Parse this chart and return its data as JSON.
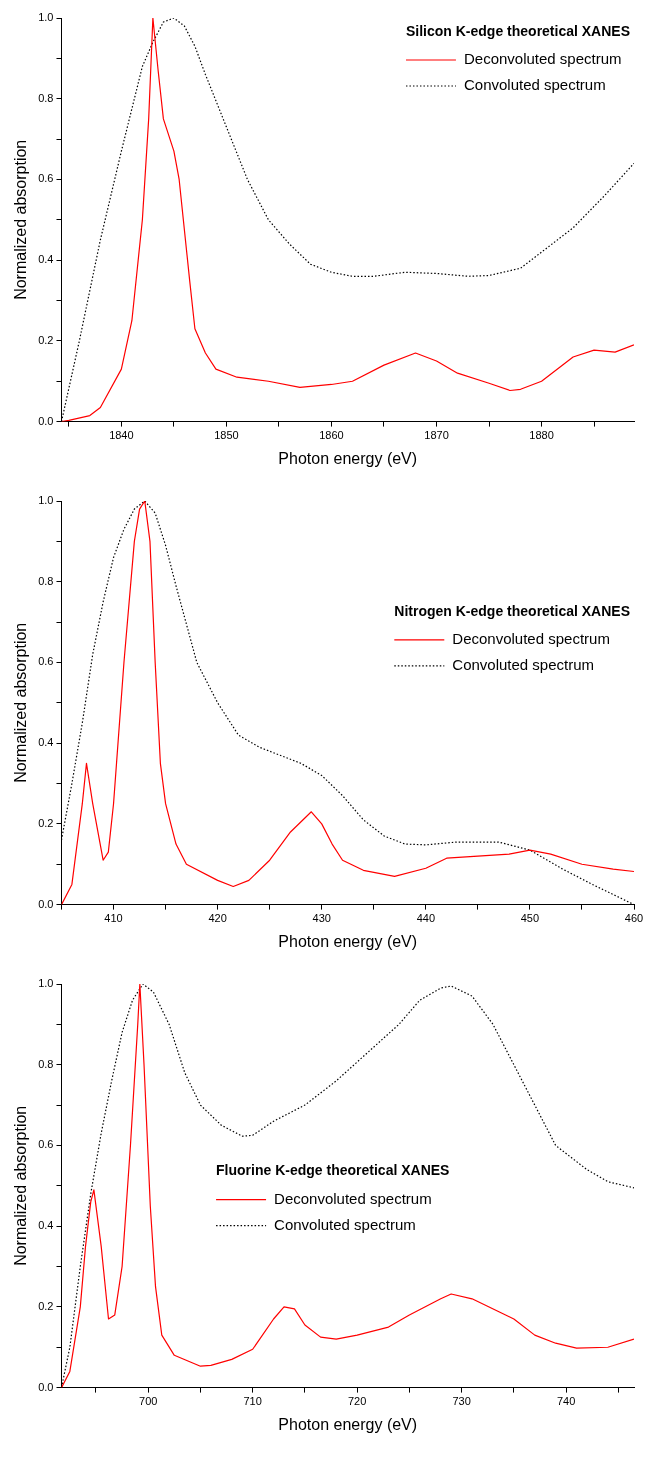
{
  "chart_data": [
    {
      "type": "line",
      "xlabel": "Photon energy (eV)",
      "ylabel": "Normalized absorption",
      "legend_title": "Silicon K-edge theoretical XANES",
      "legend": "top right",
      "xlim": [
        1834.3,
        1888.8
      ],
      "ylim": [
        0,
        1
      ],
      "xticks": [
        {
          "value": 1835,
          "label": null
        },
        1840,
        {
          "value": 1845,
          "label": null
        },
        1850,
        {
          "value": 1855,
          "label": null
        },
        1860,
        {
          "value": 1865,
          "label": null
        },
        1870,
        {
          "value": 1875,
          "label": null
        },
        1880,
        {
          "value": 1885,
          "label": null
        }
      ],
      "yticks": [
        {
          "value": 0,
          "label": "0.0"
        },
        {
          "value": 0.1,
          "label": null
        },
        0.2,
        {
          "value": 0.3,
          "label": null
        },
        0.4,
        {
          "value": 0.5,
          "label": null
        },
        0.6,
        {
          "value": 0.7,
          "label": null
        },
        0.8,
        {
          "value": 0.9,
          "label": null
        },
        {
          "value": 1,
          "label": "1.0"
        }
      ],
      "series": [
        {
          "name": "Deconvoluted spectrum",
          "color": "#ff0000",
          "line_style": "solid",
          "x": [
            1834.3,
            1835,
            1837,
            1838,
            1840,
            1841,
            1842,
            1842.6,
            1843,
            1843.5,
            1844,
            1845,
            1845.5,
            1846.5,
            1847,
            1848,
            1849,
            1851,
            1854,
            1857,
            1860,
            1862,
            1865,
            1868,
            1870,
            1872,
            1875,
            1877,
            1878,
            1880,
            1883,
            1885,
            1887,
            1888.8
          ],
          "values": [
            0,
            0.003,
            0.015,
            0.035,
            0.13,
            0.25,
            0.5,
            0.75,
            1.0,
            0.87,
            0.75,
            0.67,
            0.6,
            0.35,
            0.23,
            0.17,
            0.13,
            0.11,
            0.1,
            0.085,
            0.092,
            0.1,
            0.14,
            0.17,
            0.15,
            0.12,
            0.095,
            0.077,
            0.08,
            0.1,
            0.16,
            0.177,
            0.172,
            0.19
          ]
        },
        {
          "name": "Convoluted spectrum",
          "color": "#000000",
          "line_style": "dotted",
          "x": [
            1834.3,
            1836,
            1838,
            1840,
            1842,
            1843,
            1844,
            1845,
            1846,
            1847,
            1848,
            1850,
            1852,
            1854,
            1856,
            1858,
            1860,
            1862,
            1864,
            1867,
            1870,
            1873,
            1875,
            1878,
            1880,
            1883,
            1886,
            1888.8
          ],
          "values": [
            0,
            0.2,
            0.45,
            0.67,
            0.88,
            0.94,
            0.99,
            1.0,
            0.98,
            0.93,
            0.86,
            0.73,
            0.6,
            0.5,
            0.44,
            0.39,
            0.37,
            0.36,
            0.36,
            0.37,
            0.367,
            0.36,
            0.362,
            0.38,
            0.42,
            0.48,
            0.56,
            0.64
          ]
        }
      ]
    },
    {
      "type": "line",
      "xlabel": "Photon energy (eV)",
      "ylabel": "Normalized absorption",
      "legend_title": "Nitrogen K-edge theoretical XANES",
      "legend": "right",
      "xlim": [
        405,
        460
      ],
      "ylim": [
        0,
        1
      ],
      "xticks": [
        {
          "value": 405,
          "label": null
        },
        410,
        {
          "value": 415,
          "label": null
        },
        420,
        {
          "value": 425,
          "label": null
        },
        430,
        {
          "value": 435,
          "label": null
        },
        440,
        {
          "value": 445,
          "label": null
        },
        450,
        {
          "value": 455,
          "label": null
        },
        460
      ],
      "yticks": [
        {
          "value": 0,
          "label": "0.0"
        },
        {
          "value": 0.1,
          "label": null
        },
        0.2,
        {
          "value": 0.3,
          "label": null
        },
        0.4,
        {
          "value": 0.5,
          "label": null
        },
        0.6,
        {
          "value": 0.7,
          "label": null
        },
        0.8,
        {
          "value": 0.9,
          "label": null
        },
        {
          "value": 1,
          "label": "1.0"
        }
      ],
      "series": [
        {
          "name": "Deconvoluted spectrum",
          "color": "#ff0000",
          "line_style": "solid",
          "x": [
            405,
            406,
            407,
            407.4,
            408,
            409,
            409.5,
            410,
            411,
            412,
            412.5,
            413,
            413.5,
            414,
            414.5,
            415,
            416,
            417,
            420,
            421.5,
            423,
            425,
            427,
            429,
            430,
            431,
            432,
            434,
            437,
            440,
            442,
            445,
            448,
            450,
            452,
            455,
            458,
            460
          ],
          "values": [
            0,
            0.05,
            0.25,
            0.35,
            0.25,
            0.11,
            0.13,
            0.25,
            0.6,
            0.9,
            0.98,
            1.0,
            0.9,
            0.6,
            0.35,
            0.25,
            0.15,
            0.1,
            0.06,
            0.045,
            0.06,
            0.11,
            0.18,
            0.23,
            0.2,
            0.15,
            0.11,
            0.085,
            0.07,
            0.09,
            0.115,
            0.12,
            0.125,
            0.135,
            0.125,
            0.1,
            0.088,
            0.082
          ]
        },
        {
          "name": "Convoluted spectrum",
          "color": "#000000",
          "line_style": "dotted",
          "x": [
            405,
            406,
            407,
            408,
            409,
            410,
            411,
            412,
            413,
            414,
            415,
            416,
            418,
            420,
            422,
            424,
            426,
            428,
            430,
            432,
            434,
            436,
            438,
            440,
            443,
            447,
            450,
            453,
            456,
            460
          ],
          "values": [
            0.16,
            0.3,
            0.45,
            0.62,
            0.75,
            0.86,
            0.93,
            0.98,
            1.0,
            0.97,
            0.89,
            0.79,
            0.6,
            0.5,
            0.42,
            0.39,
            0.37,
            0.35,
            0.32,
            0.27,
            0.21,
            0.17,
            0.15,
            0.148,
            0.155,
            0.155,
            0.135,
            0.09,
            0.05,
            0
          ]
        }
      ]
    },
    {
      "type": "line",
      "xlabel": "Photon energy (eV)",
      "ylabel": "Normalized absorption",
      "legend_title": "Fluorine K-edge theoretical XANES",
      "legend": "center",
      "xlim": [
        691.7,
        746.5
      ],
      "ylim": [
        0,
        1
      ],
      "xticks": [
        {
          "value": 695,
          "label": null
        },
        700,
        {
          "value": 705,
          "label": null
        },
        710,
        {
          "value": 715,
          "label": null
        },
        720,
        {
          "value": 725,
          "label": null
        },
        730,
        {
          "value": 735,
          "label": null
        },
        740,
        {
          "value": 745,
          "label": null
        }
      ],
      "yticks": [
        {
          "value": 0,
          "label": "0.0"
        },
        {
          "value": 0.1,
          "label": null
        },
        0.2,
        {
          "value": 0.3,
          "label": null
        },
        0.4,
        {
          "value": 0.5,
          "label": null
        },
        0.6,
        {
          "value": 0.7,
          "label": null
        },
        0.8,
        {
          "value": 0.9,
          "label": null
        },
        {
          "value": 1,
          "label": "1.0"
        }
      ],
      "series": [
        {
          "name": "Deconvoluted spectrum",
          "color": "#ff0000",
          "line_style": "solid",
          "x": [
            691.7,
            692.5,
            693.5,
            694,
            694.5,
            694.8,
            695.5,
            696.2,
            696.8,
            697.5,
            698.3,
            699,
            699.2,
            699.6,
            700.2,
            700.7,
            701.3,
            702.5,
            705,
            706,
            708,
            710,
            712,
            713,
            714,
            715,
            716.5,
            718,
            720,
            723,
            725,
            728,
            729,
            731,
            735,
            737,
            739,
            741,
            744,
            746.5
          ],
          "values": [
            0,
            0.04,
            0.2,
            0.35,
            0.46,
            0.49,
            0.35,
            0.17,
            0.18,
            0.3,
            0.6,
            0.9,
            1.0,
            0.8,
            0.45,
            0.25,
            0.13,
            0.08,
            0.053,
            0.055,
            0.07,
            0.095,
            0.17,
            0.2,
            0.195,
            0.155,
            0.125,
            0.12,
            0.13,
            0.15,
            0.18,
            0.22,
            0.232,
            0.22,
            0.17,
            0.13,
            0.11,
            0.098,
            0.1,
            0.12
          ]
        },
        {
          "name": "Convoluted spectrum",
          "color": "#000000",
          "line_style": "dotted",
          "x": [
            691.7,
            692.5,
            693.5,
            694.5,
            695.5,
            696.5,
            697.5,
            698.5,
            699.5,
            700.5,
            702,
            703.5,
            705,
            707,
            709,
            710,
            712,
            715,
            718,
            721,
            724,
            726,
            728,
            729,
            731,
            733,
            735,
            737,
            739,
            742,
            744,
            746.5
          ],
          "values": [
            0,
            0.1,
            0.3,
            0.48,
            0.63,
            0.76,
            0.88,
            0.96,
            1.0,
            0.98,
            0.9,
            0.78,
            0.7,
            0.65,
            0.623,
            0.625,
            0.66,
            0.7,
            0.76,
            0.83,
            0.9,
            0.96,
            0.99,
            0.995,
            0.97,
            0.9,
            0.8,
            0.7,
            0.6,
            0.54,
            0.51,
            0.495
          ]
        }
      ]
    }
  ]
}
